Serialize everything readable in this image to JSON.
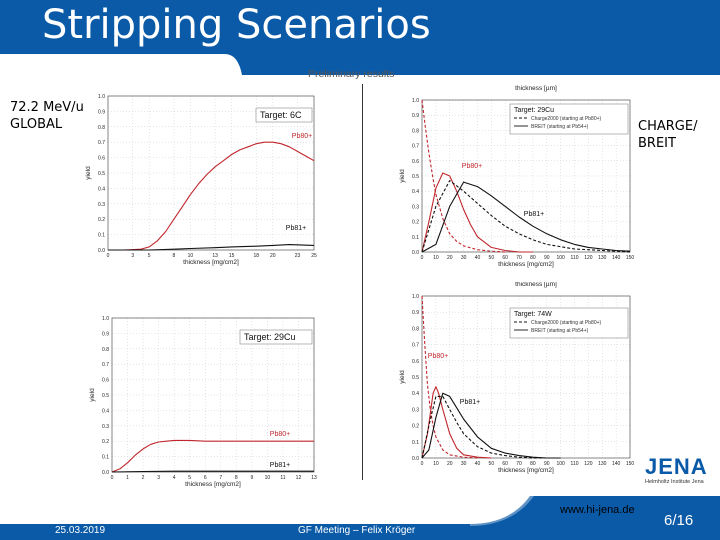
{
  "header": {
    "title": "Stripping Scenarios"
  },
  "subtitle": "Preliminary results",
  "labels": {
    "left_line1": "72.2 MeV/u",
    "left_line2": "GLOBAL",
    "right_line1": "CHARGE/",
    "right_line2": "BREIT"
  },
  "footer": {
    "date": "25.03.2019",
    "meeting": "GF Meeting – Felix Kröger",
    "url": "www.hi-jena.de",
    "page": "6/16",
    "logo_text": "JENA",
    "logo_sub": "Helmholtz Institute Jena"
  },
  "colors": {
    "header_blue": "#0a5aa8",
    "series_red": "#c0262c",
    "series_black": "#111111",
    "series_red_dashed": "#c0262c",
    "series_black_dashed": "#111111"
  },
  "chart_data": [
    {
      "type": "line",
      "id": "global-6c",
      "legend_title": "Target: 6C",
      "annotations": [
        "Pb80+",
        "Pb81+"
      ],
      "xlabel": "thickness [mg/cm2]",
      "ylabel": "yield",
      "xlim": [
        0,
        25
      ],
      "ylim": [
        0,
        1.0
      ],
      "xticks": [
        0,
        3,
        5,
        8,
        10,
        13,
        15,
        18,
        20,
        23,
        25
      ],
      "yticks": [
        0.0,
        0.1,
        0.2,
        0.3,
        0.4,
        0.5,
        0.6,
        0.7,
        0.8,
        0.9,
        1.0
      ],
      "series": [
        {
          "name": "Pb80+",
          "color": "#c0262c",
          "dash": false,
          "x": [
            0,
            2,
            4,
            5,
            6,
            7,
            8,
            9,
            10,
            11,
            12,
            13,
            14,
            15,
            16,
            17,
            18,
            19,
            20,
            21,
            22,
            23,
            24,
            25
          ],
          "y": [
            0,
            0,
            0.005,
            0.02,
            0.06,
            0.12,
            0.2,
            0.28,
            0.36,
            0.43,
            0.49,
            0.54,
            0.58,
            0.62,
            0.65,
            0.67,
            0.69,
            0.7,
            0.7,
            0.69,
            0.67,
            0.64,
            0.61,
            0.58
          ]
        },
        {
          "name": "Pb81+",
          "color": "#111111",
          "dash": false,
          "x": [
            0,
            5,
            8,
            10,
            13,
            15,
            18,
            20,
            22,
            25
          ],
          "y": [
            0,
            0.0,
            0.005,
            0.01,
            0.015,
            0.02,
            0.025,
            0.03,
            0.035,
            0.03
          ]
        }
      ]
    },
    {
      "type": "line",
      "id": "global-29cu",
      "legend_title": "Target: 29Cu",
      "annotations": [
        "Pb80+",
        "Pb81+"
      ],
      "xlabel": "thickness [mg/cm2]",
      "ylabel": "yield",
      "xlim": [
        0,
        13
      ],
      "ylim": [
        0,
        1.0
      ],
      "xticks": [
        0,
        1,
        2,
        3,
        4,
        5,
        6,
        7,
        8,
        9,
        10,
        11,
        12,
        13
      ],
      "yticks": [
        0.0,
        0.1,
        0.2,
        0.3,
        0.4,
        0.5,
        0.6,
        0.7,
        0.8,
        0.9,
        1.0
      ],
      "series": [
        {
          "name": "Pb80+",
          "color": "#c0262c",
          "dash": false,
          "x": [
            0,
            0.5,
            1,
            1.5,
            2,
            2.5,
            3,
            3.5,
            4,
            5,
            6,
            7,
            8,
            9,
            10,
            11,
            12,
            13
          ],
          "y": [
            0,
            0.02,
            0.06,
            0.11,
            0.15,
            0.18,
            0.195,
            0.2,
            0.205,
            0.205,
            0.2,
            0.2,
            0.2,
            0.2,
            0.2,
            0.2,
            0.2,
            0.2
          ]
        },
        {
          "name": "Pb81+",
          "color": "#111111",
          "dash": false,
          "x": [
            0,
            2,
            4,
            6,
            8,
            10,
            13
          ],
          "y": [
            0,
            0.003,
            0.005,
            0.005,
            0.005,
            0.005,
            0.005
          ]
        }
      ]
    },
    {
      "type": "line",
      "id": "charge-29cu",
      "legend_title": "Target: 29Cu",
      "legend_entries": [
        "Charge2000 (starting at Pb80+)",
        "BREIT (starting at Pb54+)"
      ],
      "annotations": [
        "Pb80+",
        "Pb81+"
      ],
      "xlabel": "thickness [mg/cm2]",
      "x2label": "thickness [µm]",
      "ylabel": "yield",
      "xlim": [
        0,
        150
      ],
      "ylim": [
        0,
        1.0
      ],
      "xticks": [
        0,
        10,
        20,
        30,
        40,
        50,
        60,
        70,
        80,
        90,
        100,
        110,
        120,
        130,
        140,
        150
      ],
      "yticks": [
        0.0,
        0.1,
        0.2,
        0.3,
        0.4,
        0.5,
        0.6,
        0.7,
        0.8,
        0.9,
        1.0
      ],
      "series": [
        {
          "name": "Pb80+ Charge2000",
          "color": "#c0262c",
          "dash": true,
          "x": [
            0,
            2,
            5,
            8,
            10,
            15,
            20,
            25,
            30,
            40,
            50,
            60
          ],
          "y": [
            1.0,
            0.85,
            0.65,
            0.48,
            0.38,
            0.22,
            0.12,
            0.07,
            0.04,
            0.015,
            0.005,
            0.0
          ]
        },
        {
          "name": "Pb80+ BREIT",
          "color": "#c0262c",
          "dash": false,
          "x": [
            0,
            5,
            10,
            15,
            20,
            25,
            30,
            35,
            40,
            50,
            60,
            70,
            80
          ],
          "y": [
            0,
            0.2,
            0.42,
            0.52,
            0.5,
            0.4,
            0.28,
            0.18,
            0.1,
            0.03,
            0.01,
            0.0,
            0.0
          ]
        },
        {
          "name": "Pb81+ Charge2000",
          "color": "#111111",
          "dash": true,
          "x": [
            0,
            10,
            20,
            30,
            40,
            50,
            60,
            70,
            80,
            90,
            100,
            110,
            120,
            130,
            140,
            150
          ],
          "y": [
            0,
            0.3,
            0.47,
            0.4,
            0.32,
            0.24,
            0.17,
            0.12,
            0.08,
            0.05,
            0.035,
            0.02,
            0.015,
            0.01,
            0.005,
            0.0
          ]
        },
        {
          "name": "Pb81+ BREIT",
          "color": "#111111",
          "dash": false,
          "x": [
            0,
            10,
            20,
            30,
            40,
            50,
            60,
            70,
            80,
            90,
            100,
            110,
            120,
            130,
            140,
            150
          ],
          "y": [
            0,
            0.05,
            0.3,
            0.46,
            0.43,
            0.37,
            0.3,
            0.23,
            0.17,
            0.12,
            0.08,
            0.05,
            0.03,
            0.02,
            0.01,
            0.005
          ]
        }
      ]
    },
    {
      "type": "line",
      "id": "charge-74w",
      "legend_title": "Target: 74W",
      "legend_entries": [
        "Charge2000 (starting at Pb80+)",
        "BREIT (starting at Pb54+)"
      ],
      "annotations": [
        "Pb80+",
        "Pb81+"
      ],
      "xlabel": "thickness [mg/cm2]",
      "x2label": "thickness [µm]",
      "ylabel": "yield",
      "xlim": [
        0,
        150
      ],
      "ylim": [
        0,
        1.0
      ],
      "xticks": [
        0,
        10,
        20,
        30,
        40,
        50,
        60,
        70,
        80,
        90,
        100,
        110,
        120,
        130,
        140,
        150
      ],
      "yticks": [
        0.0,
        0.1,
        0.2,
        0.3,
        0.4,
        0.5,
        0.6,
        0.7,
        0.8,
        0.9,
        1.0
      ],
      "series": [
        {
          "name": "Pb80+ Charge2000",
          "color": "#c0262c",
          "dash": true,
          "x": [
            0,
            2,
            4,
            6,
            8,
            10,
            15,
            20,
            30,
            40
          ],
          "y": [
            1.0,
            0.7,
            0.45,
            0.3,
            0.2,
            0.13,
            0.05,
            0.02,
            0.005,
            0.0
          ]
        },
        {
          "name": "Pb80+ BREIT",
          "color": "#c0262c",
          "dash": false,
          "x": [
            0,
            4,
            8,
            10,
            12,
            15,
            20,
            25,
            30,
            40,
            50
          ],
          "y": [
            0,
            0.15,
            0.4,
            0.44,
            0.4,
            0.3,
            0.15,
            0.06,
            0.02,
            0.005,
            0.0
          ]
        },
        {
          "name": "Pb81+ Charge2000",
          "color": "#111111",
          "dash": true,
          "x": [
            0,
            5,
            10,
            15,
            20,
            25,
            30,
            40,
            50,
            60,
            70,
            80,
            90,
            100
          ],
          "y": [
            0,
            0.2,
            0.38,
            0.38,
            0.3,
            0.22,
            0.15,
            0.07,
            0.03,
            0.015,
            0.005,
            0.0,
            0.0,
            0.0
          ]
        },
        {
          "name": "Pb81+ BREIT",
          "color": "#111111",
          "dash": false,
          "x": [
            0,
            5,
            10,
            15,
            20,
            25,
            30,
            40,
            50,
            60,
            70,
            80,
            90,
            100
          ],
          "y": [
            0,
            0.05,
            0.25,
            0.4,
            0.38,
            0.31,
            0.24,
            0.13,
            0.06,
            0.03,
            0.015,
            0.005,
            0.0,
            0.0
          ]
        }
      ]
    }
  ]
}
